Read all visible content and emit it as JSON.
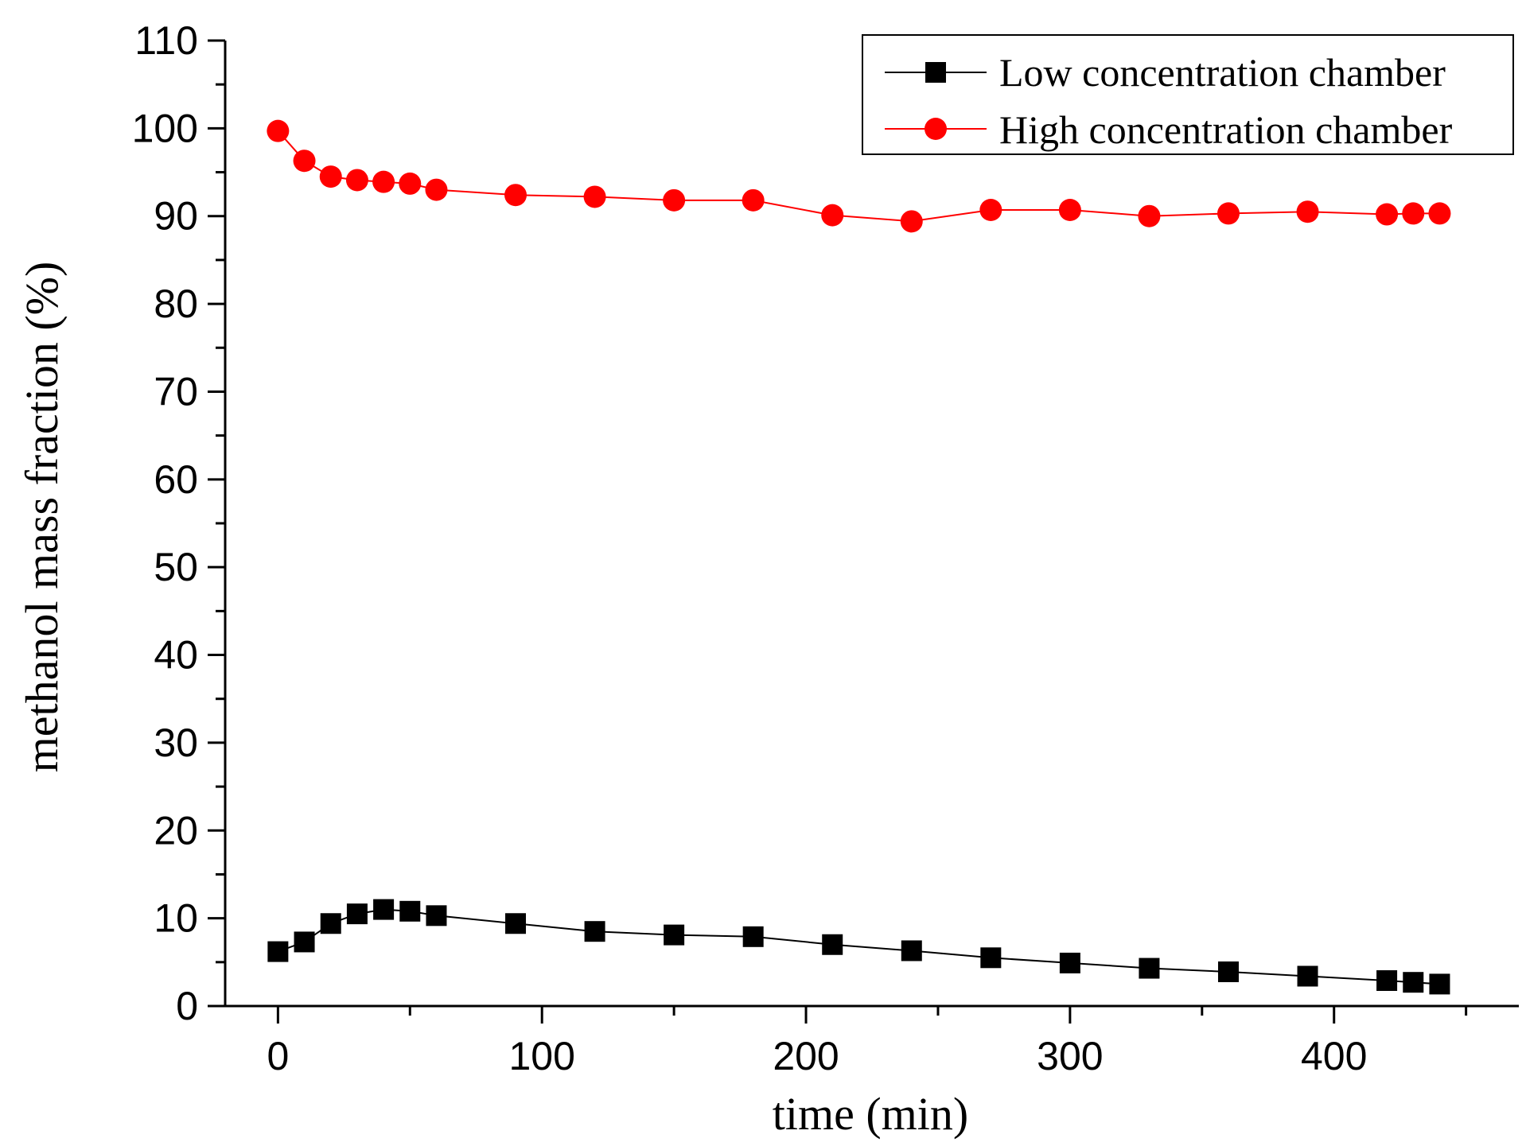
{
  "chart_data": {
    "type": "line",
    "title": "",
    "xlabel": "time (min)",
    "ylabel": "methanol mass fraction (%)",
    "xlim": [
      -20,
      470
    ],
    "ylim": [
      0,
      110
    ],
    "xticks": [
      0,
      100,
      200,
      300,
      400
    ],
    "yticks": [
      0,
      10,
      20,
      30,
      40,
      50,
      60,
      70,
      80,
      90,
      100,
      110
    ],
    "grid": false,
    "legend_position": "top-right",
    "series": [
      {
        "name": "Low concentration chamber",
        "color": "#000000",
        "marker": "square",
        "x": [
          0,
          10,
          20,
          30,
          40,
          50,
          60,
          90,
          120,
          150,
          180,
          210,
          240,
          270,
          300,
          330,
          360,
          390,
          420,
          430,
          440
        ],
        "y": [
          6.2,
          7.3,
          9.4,
          10.5,
          11.0,
          10.8,
          10.3,
          9.4,
          8.5,
          8.1,
          7.9,
          7.0,
          6.3,
          5.5,
          4.9,
          4.3,
          3.9,
          3.4,
          2.9,
          2.7,
          2.5
        ]
      },
      {
        "name": "High concentration chamber",
        "color": "#ff0000",
        "marker": "circle",
        "x": [
          0,
          10,
          20,
          30,
          40,
          50,
          60,
          90,
          120,
          150,
          180,
          210,
          240,
          270,
          300,
          330,
          360,
          390,
          420,
          430,
          440
        ],
        "y": [
          99.7,
          96.3,
          94.5,
          94.1,
          93.9,
          93.7,
          93.0,
          92.4,
          92.2,
          91.8,
          91.8,
          90.1,
          89.4,
          90.7,
          90.7,
          90.0,
          90.3,
          90.5,
          90.2,
          90.3,
          90.3
        ]
      }
    ]
  }
}
